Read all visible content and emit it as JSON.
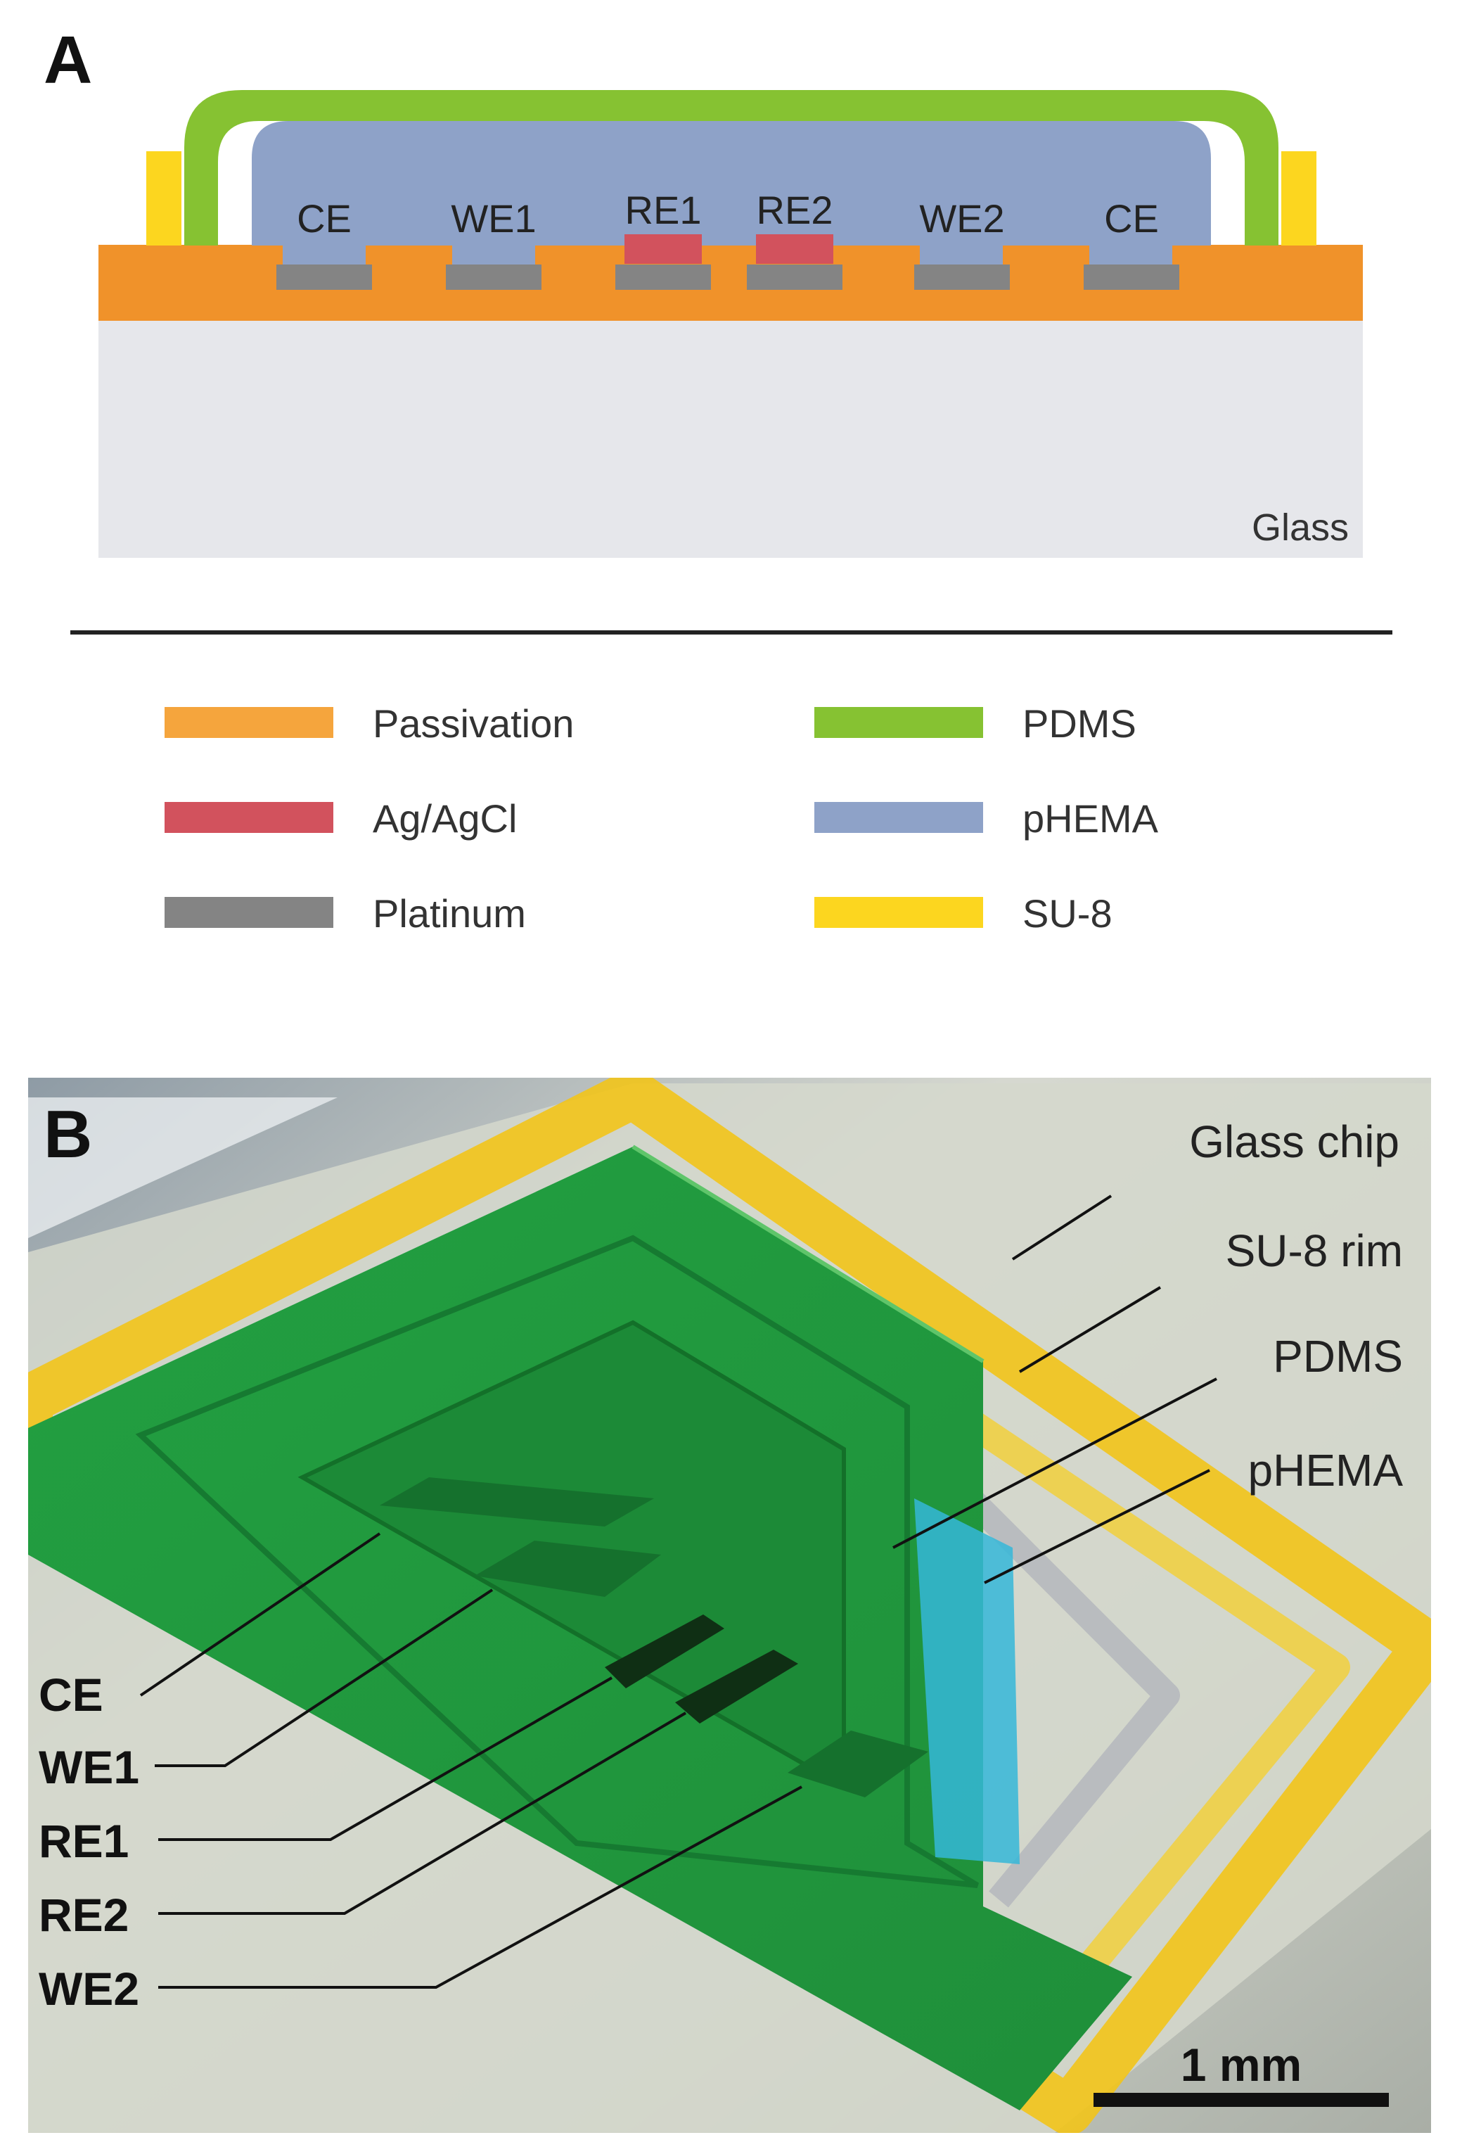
{
  "panel_a": {
    "panel_label": "A",
    "electrodes": [
      {
        "label": "CE",
        "material": "Platinum"
      },
      {
        "label": "WE1",
        "material": "Platinum"
      },
      {
        "label": "RE1",
        "material": "Ag/AgCl"
      },
      {
        "label": "RE2",
        "material": "Ag/AgCl"
      },
      {
        "label": "WE2",
        "material": "Platinum"
      },
      {
        "label": "CE",
        "material": "Platinum"
      }
    ],
    "substrate_label": "Glass"
  },
  "legend": {
    "items": [
      {
        "label": "Passivation",
        "color": "#f5a53d"
      },
      {
        "label": "Ag/AgCl",
        "color": "#d2525d"
      },
      {
        "label": "Platinum",
        "color": "#848484"
      },
      {
        "label": "PDMS",
        "color": "#86c232"
      },
      {
        "label": "pHEMA",
        "color": "#8ea2c8"
      },
      {
        "label": "SU-8",
        "color": "#fcd61f"
      }
    ]
  },
  "panel_b": {
    "panel_label": "B",
    "callouts_right": [
      "Glass chip",
      "SU-8 rim",
      "PDMS",
      "pHEMA"
    ],
    "callouts_left": [
      "CE",
      "WE1",
      "RE1",
      "RE2",
      "WE2"
    ],
    "scale_bar": "1 mm"
  },
  "colors": {
    "passivation": "#f0922a",
    "glass": "#e6e7eb",
    "pdms": "#86c232",
    "phema": "#8ea2c8",
    "su8": "#fcd61f",
    "agagcl": "#d2525d",
    "platinum": "#848484"
  }
}
